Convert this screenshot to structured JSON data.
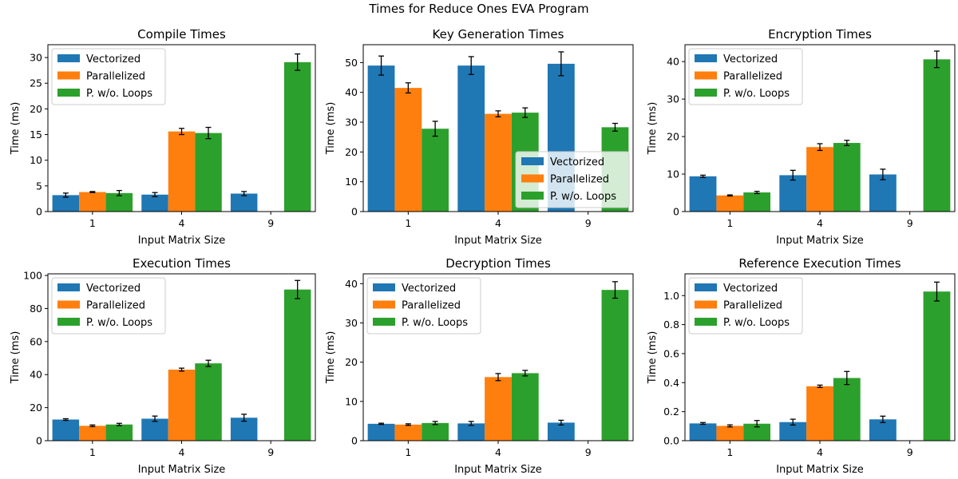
{
  "figure": {
    "suptitle": "Times for Reduce Ones EVA Program"
  },
  "colors": {
    "Vectorized": "#1f77b4",
    "Parallelized": "#ff7f0e",
    "P. w/o. Loops": "#2ca02c"
  },
  "chart_data": [
    {
      "type": "bar",
      "title": "Compile Times",
      "xlabel": "Input Matrix Size",
      "ylabel": "Time (ms)",
      "categories": [
        "1",
        "4",
        "9"
      ],
      "ylim": [
        0,
        32.5
      ],
      "yticks": [
        0,
        5,
        10,
        15,
        20,
        25,
        30
      ],
      "ytick_labels": [
        "0",
        "5",
        "10",
        "15",
        "20",
        "25",
        "30"
      ],
      "legend_position": "upper-left",
      "series": [
        {
          "name": "Vectorized",
          "values": [
            3.2,
            3.3,
            3.5
          ],
          "errors": [
            0.4,
            0.4,
            0.4
          ]
        },
        {
          "name": "Parallelized",
          "values": [
            3.8,
            15.6,
            null
          ],
          "errors": [
            0.1,
            0.6,
            null
          ]
        },
        {
          "name": "P. w/o. Loops",
          "values": [
            3.6,
            15.3,
            29.1
          ],
          "errors": [
            0.5,
            1.1,
            1.6
          ]
        }
      ]
    },
    {
      "type": "bar",
      "title": "Key Generation Times",
      "xlabel": "Input Matrix Size",
      "ylabel": "Time (ms)",
      "categories": [
        "1",
        "4",
        "9"
      ],
      "ylim": [
        0,
        56
      ],
      "yticks": [
        0,
        10,
        20,
        30,
        40,
        50
      ],
      "ytick_labels": [
        "0",
        "10",
        "20",
        "30",
        "40",
        "50"
      ],
      "legend_position": "lower-right",
      "series": [
        {
          "name": "Vectorized",
          "values": [
            49.0,
            49.0,
            49.6
          ],
          "errors": [
            3.2,
            3.0,
            4.0
          ]
        },
        {
          "name": "Parallelized",
          "values": [
            41.5,
            32.8,
            null
          ],
          "errors": [
            1.7,
            1.0,
            null
          ]
        },
        {
          "name": "P. w/o. Loops",
          "values": [
            27.8,
            33.2,
            28.3
          ],
          "errors": [
            2.5,
            1.6,
            1.3
          ]
        }
      ]
    },
    {
      "type": "bar",
      "title": "Encryption Times",
      "xlabel": "Input Matrix Size",
      "ylabel": "Time (ms)",
      "categories": [
        "1",
        "4",
        "9"
      ],
      "ylim": [
        0,
        44.5
      ],
      "yticks": [
        0,
        10,
        20,
        30,
        40
      ],
      "ytick_labels": [
        "0",
        "10",
        "20",
        "30",
        "40"
      ],
      "legend_position": "upper-left",
      "series": [
        {
          "name": "Vectorized",
          "values": [
            9.4,
            9.7,
            9.9
          ],
          "errors": [
            0.3,
            1.3,
            1.4
          ]
        },
        {
          "name": "Parallelized",
          "values": [
            4.3,
            17.2,
            null
          ],
          "errors": [
            0.15,
            0.9,
            null
          ]
        },
        {
          "name": "P. w/o. Loops",
          "values": [
            5.1,
            18.3,
            40.6
          ],
          "errors": [
            0.3,
            0.7,
            2.2
          ]
        }
      ]
    },
    {
      "type": "bar",
      "title": "Execution Times",
      "xlabel": "Input Matrix Size",
      "ylabel": "Time (ms)",
      "categories": [
        "1",
        "4",
        "9"
      ],
      "ylim": [
        0,
        101
      ],
      "yticks": [
        0,
        20,
        40,
        60,
        80,
        100
      ],
      "ytick_labels": [
        "0",
        "20",
        "40",
        "60",
        "80",
        "100"
      ],
      "legend_position": "upper-left",
      "series": [
        {
          "name": "Vectorized",
          "values": [
            12.8,
            13.3,
            13.9
          ],
          "errors": [
            0.5,
            1.6,
            2.1
          ]
        },
        {
          "name": "Parallelized",
          "values": [
            9.0,
            43.0,
            null
          ],
          "errors": [
            0.5,
            0.9,
            null
          ]
        },
        {
          "name": "P. w/o. Loops",
          "values": [
            9.8,
            46.8,
            91.5
          ],
          "errors": [
            0.7,
            1.9,
            5.5
          ]
        }
      ]
    },
    {
      "type": "bar",
      "title": "Decryption Times",
      "xlabel": "Input Matrix Size",
      "ylabel": "Time (ms)",
      "categories": [
        "1",
        "4",
        "9"
      ],
      "ylim": [
        0,
        42.5
      ],
      "yticks": [
        0,
        10,
        20,
        30,
        40
      ],
      "ytick_labels": [
        "0",
        "10",
        "20",
        "30",
        "40"
      ],
      "legend_position": "upper-left",
      "series": [
        {
          "name": "Vectorized",
          "values": [
            4.3,
            4.4,
            4.6
          ],
          "errors": [
            0.15,
            0.5,
            0.6
          ]
        },
        {
          "name": "Parallelized",
          "values": [
            4.1,
            16.2,
            null
          ],
          "errors": [
            0.2,
            0.9,
            null
          ]
        },
        {
          "name": "P. w/o. Loops",
          "values": [
            4.5,
            17.2,
            38.4
          ],
          "errors": [
            0.4,
            0.7,
            2.1
          ]
        }
      ]
    },
    {
      "type": "bar",
      "title": "Reference Execution Times",
      "xlabel": "Input Matrix Size",
      "ylabel": "Time (ms)",
      "categories": [
        "1",
        "4",
        "9"
      ],
      "ylim": [
        0,
        1.15
      ],
      "yticks": [
        0,
        0.2,
        0.4,
        0.6,
        0.8,
        1.0
      ],
      "ytick_labels": [
        "0.0",
        "0.2",
        "0.4",
        "0.6",
        "0.8",
        "1.0"
      ],
      "legend_position": "upper-left",
      "series": [
        {
          "name": "Vectorized",
          "values": [
            0.119,
            0.128,
            0.147
          ],
          "errors": [
            0.006,
            0.02,
            0.022
          ]
        },
        {
          "name": "Parallelized",
          "values": [
            0.102,
            0.375,
            null
          ],
          "errors": [
            0.007,
            0.008,
            null
          ]
        },
        {
          "name": "P. w/o. Loops",
          "values": [
            0.117,
            0.432,
            1.028
          ],
          "errors": [
            0.022,
            0.045,
            0.065
          ]
        }
      ]
    }
  ]
}
